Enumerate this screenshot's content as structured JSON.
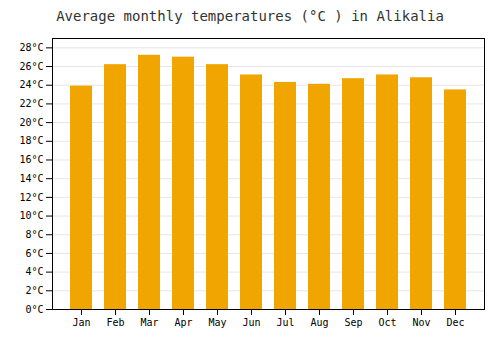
{
  "chart_data": {
    "type": "bar",
    "title": "Average monthly temperatures (°C ) in Alikalia",
    "categories": [
      "Jan",
      "Feb",
      "Mar",
      "Apr",
      "May",
      "Jun",
      "Jul",
      "Aug",
      "Sep",
      "Oct",
      "Nov",
      "Dec"
    ],
    "values": [
      23.9,
      26.2,
      27.2,
      27.0,
      26.2,
      25.1,
      24.3,
      24.1,
      24.7,
      25.1,
      24.8,
      23.5
    ],
    "color": "#F0A500",
    "ylim": [
      0,
      29
    ],
    "yticks": [
      {
        "value": 0,
        "label": "0°C"
      },
      {
        "value": 2,
        "label": "2°C"
      },
      {
        "value": 4,
        "label": "4°C"
      },
      {
        "value": 6,
        "label": "6°C"
      },
      {
        "value": 8,
        "label": "8°C"
      },
      {
        "value": 10,
        "label": "10°C"
      },
      {
        "value": 12,
        "label": "12°C"
      },
      {
        "value": 14,
        "label": "14°C"
      },
      {
        "value": 16,
        "label": "16°C"
      },
      {
        "value": 18,
        "label": "18°C"
      },
      {
        "value": 20,
        "label": "20°C"
      },
      {
        "value": 22,
        "label": "22°C"
      },
      {
        "value": 24,
        "label": "24°C"
      },
      {
        "value": 26,
        "label": "26°C"
      },
      {
        "value": 28,
        "label": "28°C"
      }
    ],
    "grid": true
  }
}
